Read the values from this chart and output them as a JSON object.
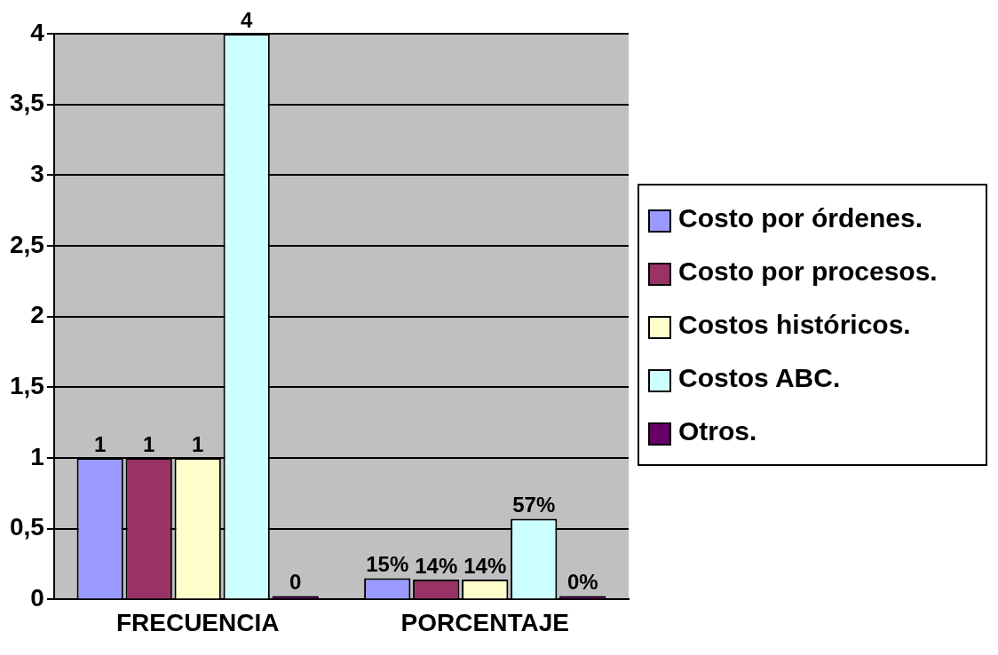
{
  "chart_data": {
    "type": "bar",
    "categories": [
      "FRECUENCIA",
      "PORCENTAJE"
    ],
    "series": [
      {
        "name": "Costo por órdenes.",
        "color": "#9999ff",
        "values": [
          1,
          0.15
        ],
        "value_labels": [
          "1",
          "15%"
        ]
      },
      {
        "name": "Costo por procesos.",
        "color": "#993366",
        "values": [
          1,
          0.14
        ],
        "value_labels": [
          "1",
          "14%"
        ]
      },
      {
        "name": "Costos históricos.",
        "color": "#ffffcc",
        "values": [
          1,
          0.14
        ],
        "value_labels": [
          "1",
          "14%"
        ]
      },
      {
        "name": "Costos ABC.",
        "color": "#ccffff",
        "values": [
          4,
          0.57
        ],
        "value_labels": [
          "4",
          "57%"
        ]
      },
      {
        "name": "Otros.",
        "color": "#660066",
        "values": [
          0,
          0
        ],
        "value_labels": [
          "0",
          "0%"
        ]
      }
    ],
    "ylim": [
      0,
      4
    ],
    "yticks": [
      0,
      {
        "value": 0.5,
        "label": "0,5"
      },
      1,
      {
        "value": 1.5,
        "label": "1,5"
      },
      2,
      {
        "value": 2.5,
        "label": "2,5"
      },
      3,
      {
        "value": 3.5,
        "label": "3,5"
      },
      4
    ],
    "grid": "y",
    "legend": "right"
  }
}
